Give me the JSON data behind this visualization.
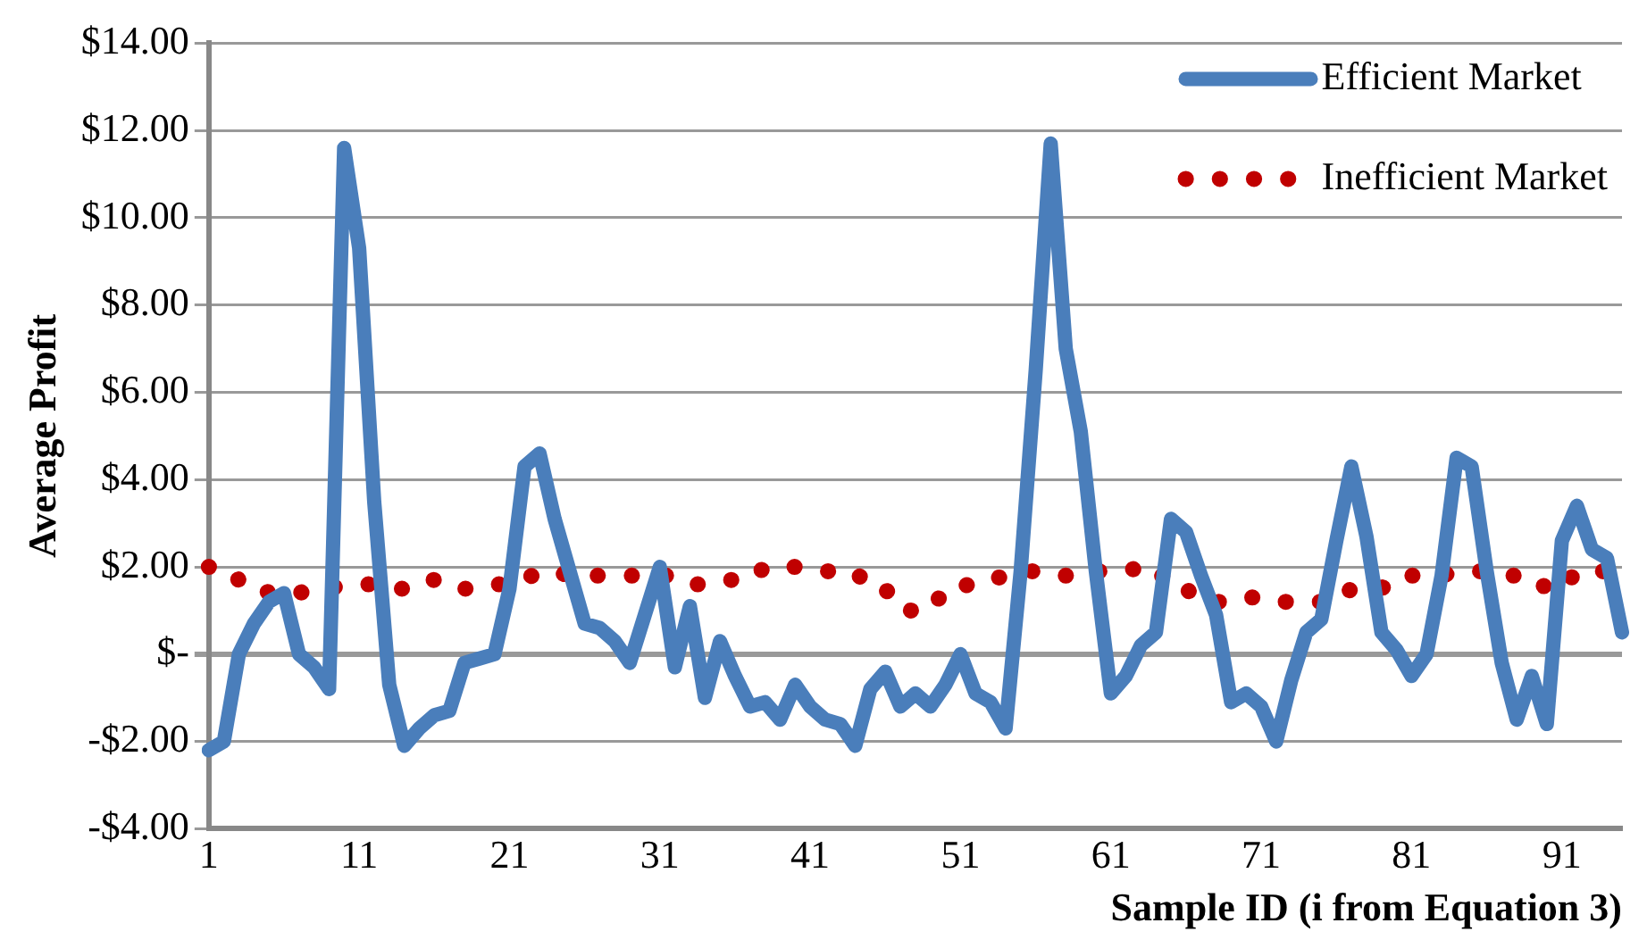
{
  "chart_data": {
    "type": "line",
    "xlabel": "Sample ID (i from Equation 3)",
    "ylabel": "Average Profit",
    "categories": [
      "1",
      null,
      null,
      null,
      null,
      null,
      null,
      null,
      null,
      null,
      "11",
      null,
      null,
      null,
      null,
      null,
      null,
      null,
      null,
      null,
      "21",
      null,
      null,
      null,
      null,
      null,
      null,
      null,
      null,
      null,
      "31",
      null,
      null,
      null,
      null,
      null,
      null,
      null,
      null,
      null,
      "41",
      null,
      null,
      null,
      null,
      null,
      null,
      null,
      null,
      null,
      "51",
      null,
      null,
      null,
      null,
      null,
      null,
      null,
      null,
      null,
      "61",
      null,
      null,
      null,
      null,
      null,
      null,
      null,
      null,
      null,
      "71",
      null,
      null,
      null,
      null,
      null,
      null,
      null,
      null,
      null,
      "81",
      null,
      null,
      null,
      null,
      null,
      null,
      null,
      null,
      null,
      "91",
      null,
      null,
      null,
      null
    ],
    "series": [
      {
        "name": "Efficient Market",
        "color": "#4a7ebb",
        "line_style": "solid",
        "values": [
          -2.2,
          -2.0,
          0.0,
          0.7,
          1.2,
          1.4,
          0.0,
          -0.3,
          -0.8,
          11.6,
          9.3,
          3.5,
          -0.7,
          -2.1,
          -1.7,
          -1.4,
          -1.3,
          -0.2,
          -0.1,
          0.0,
          1.5,
          4.3,
          4.6,
          3.1,
          1.9,
          0.7,
          0.6,
          0.3,
          -0.2,
          0.9,
          2.0,
          -0.3,
          1.1,
          -1.0,
          0.3,
          -0.5,
          -1.2,
          -1.1,
          -1.5,
          -0.7,
          -1.2,
          -1.5,
          -1.6,
          -2.1,
          -0.8,
          -0.4,
          -1.2,
          -0.9,
          -1.2,
          -0.7,
          0.0,
          -0.9,
          -1.1,
          -1.7,
          1.9,
          6.5,
          11.7,
          7.0,
          5.1,
          1.9,
          -0.9,
          -0.5,
          0.2,
          0.5,
          3.1,
          2.8,
          1.8,
          0.9,
          -1.1,
          -0.9,
          -1.2,
          -2.0,
          -0.6,
          0.5,
          0.8,
          2.6,
          4.3,
          2.7,
          0.5,
          0.1,
          -0.5,
          0.0,
          1.8,
          4.5,
          4.3,
          1.9,
          -0.2,
          -1.5,
          -0.5,
          -1.6,
          2.6,
          3.4,
          2.4,
          2.2,
          0.5
        ]
      },
      {
        "name": "Inefficient Market",
        "color": "#c00000",
        "line_style": "dotted",
        "values": [
          2.0,
          2.0,
          1.7,
          1.7,
          1.4,
          1.4,
          1.4,
          1.5,
          1.5,
          1.6,
          1.6,
          1.6,
          1.5,
          1.5,
          1.7,
          1.7,
          1.5,
          1.5,
          1.5,
          1.6,
          1.6,
          1.7,
          1.9,
          1.9,
          1.8,
          1.8,
          1.8,
          1.8,
          1.8,
          1.8,
          1.8,
          1.8,
          1.6,
          1.6,
          1.7,
          1.7,
          1.7,
          2.0,
          2.0,
          2.0,
          1.9,
          1.9,
          1.9,
          1.9,
          1.5,
          1.5,
          1.0,
          1.0,
          1.0,
          1.5,
          1.5,
          1.7,
          1.7,
          1.8,
          1.9,
          1.9,
          1.8,
          1.8,
          1.8,
          1.9,
          1.9,
          1.9,
          2.0,
          2.0,
          1.5,
          1.5,
          1.2,
          1.2,
          1.2,
          1.3,
          1.3,
          1.2,
          1.2,
          1.2,
          1.2,
          1.2,
          1.5,
          1.5,
          1.5,
          1.8,
          1.8,
          1.8,
          1.8,
          1.9,
          1.9,
          1.9,
          1.8,
          1.8,
          1.8,
          1.5,
          1.5,
          1.9,
          1.9,
          1.9,
          1.9
        ]
      }
    ],
    "ylim": [
      -4,
      14
    ],
    "yticks": [
      {
        "value": -4,
        "label": "-$4.00"
      },
      {
        "value": -2,
        "label": "-$2.00"
      },
      {
        "value": 0,
        "label": "$-"
      },
      {
        "value": 2,
        "label": "$2.00"
      },
      {
        "value": 4,
        "label": "$4.00"
      },
      {
        "value": 6,
        "label": "$6.00"
      },
      {
        "value": 8,
        "label": "$8.00"
      },
      {
        "value": 10,
        "label": "$10.00"
      },
      {
        "value": 12,
        "label": "$12.00"
      },
      {
        "value": 14,
        "label": "$14.00"
      }
    ],
    "grid": "y",
    "legend": "top right",
    "marker": "none"
  }
}
